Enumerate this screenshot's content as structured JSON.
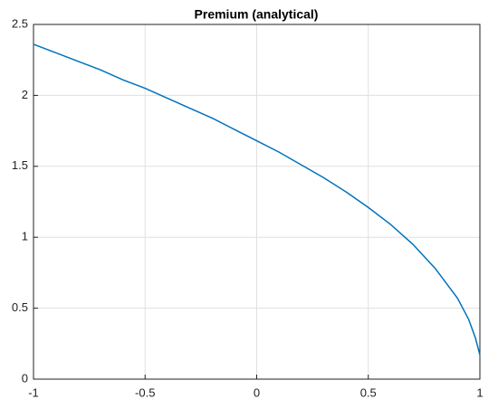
{
  "chart_data": {
    "type": "line",
    "title": "Premium (analytical)",
    "x": [
      -1,
      -0.9,
      -0.8,
      -0.7,
      -0.6,
      -0.5,
      -0.4,
      -0.3,
      -0.2,
      -0.1,
      0,
      0.1,
      0.2,
      0.3,
      0.4,
      0.5,
      0.6,
      0.7,
      0.8,
      0.9,
      0.95,
      0.98,
      1
    ],
    "series": [
      {
        "color": "#0072bd",
        "values": [
          2.36,
          2.3,
          2.24,
          2.18,
          2.11,
          2.05,
          1.98,
          1.91,
          1.84,
          1.76,
          1.68,
          1.6,
          1.51,
          1.42,
          1.32,
          1.21,
          1.09,
          0.95,
          0.78,
          0.57,
          0.42,
          0.29,
          0.17
        ]
      }
    ],
    "xlim": [
      -1,
      1
    ],
    "xticks": [
      -1,
      -0.5,
      0,
      0.5,
      1
    ],
    "ylim": [
      0,
      2.5
    ],
    "yticks": [
      0,
      0.5,
      1,
      1.5,
      2,
      2.5
    ],
    "grid": true
  }
}
